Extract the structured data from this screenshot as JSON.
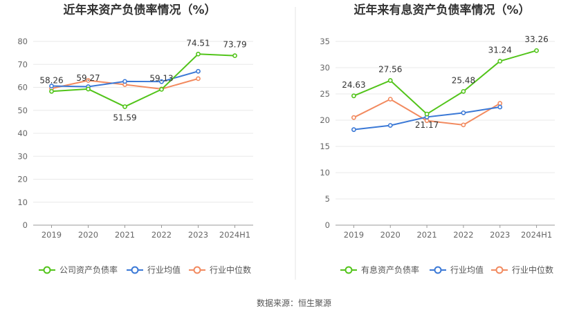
{
  "chart_data": [
    {
      "type": "line",
      "title": "近年来资产负债率情况（%）",
      "categories": [
        "2019",
        "2020",
        "2021",
        "2022",
        "2023",
        "2024H1"
      ],
      "ylim": [
        0,
        80
      ],
      "yticks": [
        0,
        10,
        20,
        30,
        40,
        50,
        60,
        70,
        80
      ],
      "grid": true,
      "legend_position": "bottom",
      "series": [
        {
          "name": "公司资产负债率",
          "color": "#52c41a",
          "values": [
            58.26,
            59.27,
            51.59,
            59.13,
            74.51,
            73.79
          ],
          "labels": [
            "58.26",
            "59.27",
            "51.59",
            "59.13",
            "74.51",
            "73.79"
          ]
        },
        {
          "name": "行业均值",
          "color": "#3a78d6",
          "values": [
            60.6,
            60.3,
            62.6,
            62.5,
            67.0,
            null
          ]
        },
        {
          "name": "行业中位数",
          "color": "#f28a5f",
          "values": [
            59.5,
            63.0,
            61.2,
            59.3,
            63.8,
            null
          ]
        }
      ]
    },
    {
      "type": "line",
      "title": "近年来有息资产负债率情况（%）",
      "categories": [
        "2019",
        "2020",
        "2021",
        "2022",
        "2023",
        "2024H1"
      ],
      "ylim": [
        0,
        35
      ],
      "yticks": [
        0,
        5,
        10,
        15,
        20,
        25,
        30,
        35
      ],
      "grid": true,
      "legend_position": "bottom",
      "series": [
        {
          "name": "有息资产负债率",
          "color": "#52c41a",
          "values": [
            24.63,
            27.56,
            21.17,
            25.48,
            31.24,
            33.26
          ],
          "labels": [
            "24.63",
            "27.56",
            "21.17",
            "25.48",
            "31.24",
            "33.26"
          ]
        },
        {
          "name": "行业均值",
          "color": "#3a78d6",
          "values": [
            18.2,
            19.0,
            20.6,
            21.4,
            22.5,
            null
          ]
        },
        {
          "name": "行业中位数",
          "color": "#f28a5f",
          "values": [
            20.5,
            24.0,
            19.9,
            19.1,
            23.2,
            null
          ]
        }
      ]
    }
  ],
  "source_text": "数据来源：恒生聚源"
}
